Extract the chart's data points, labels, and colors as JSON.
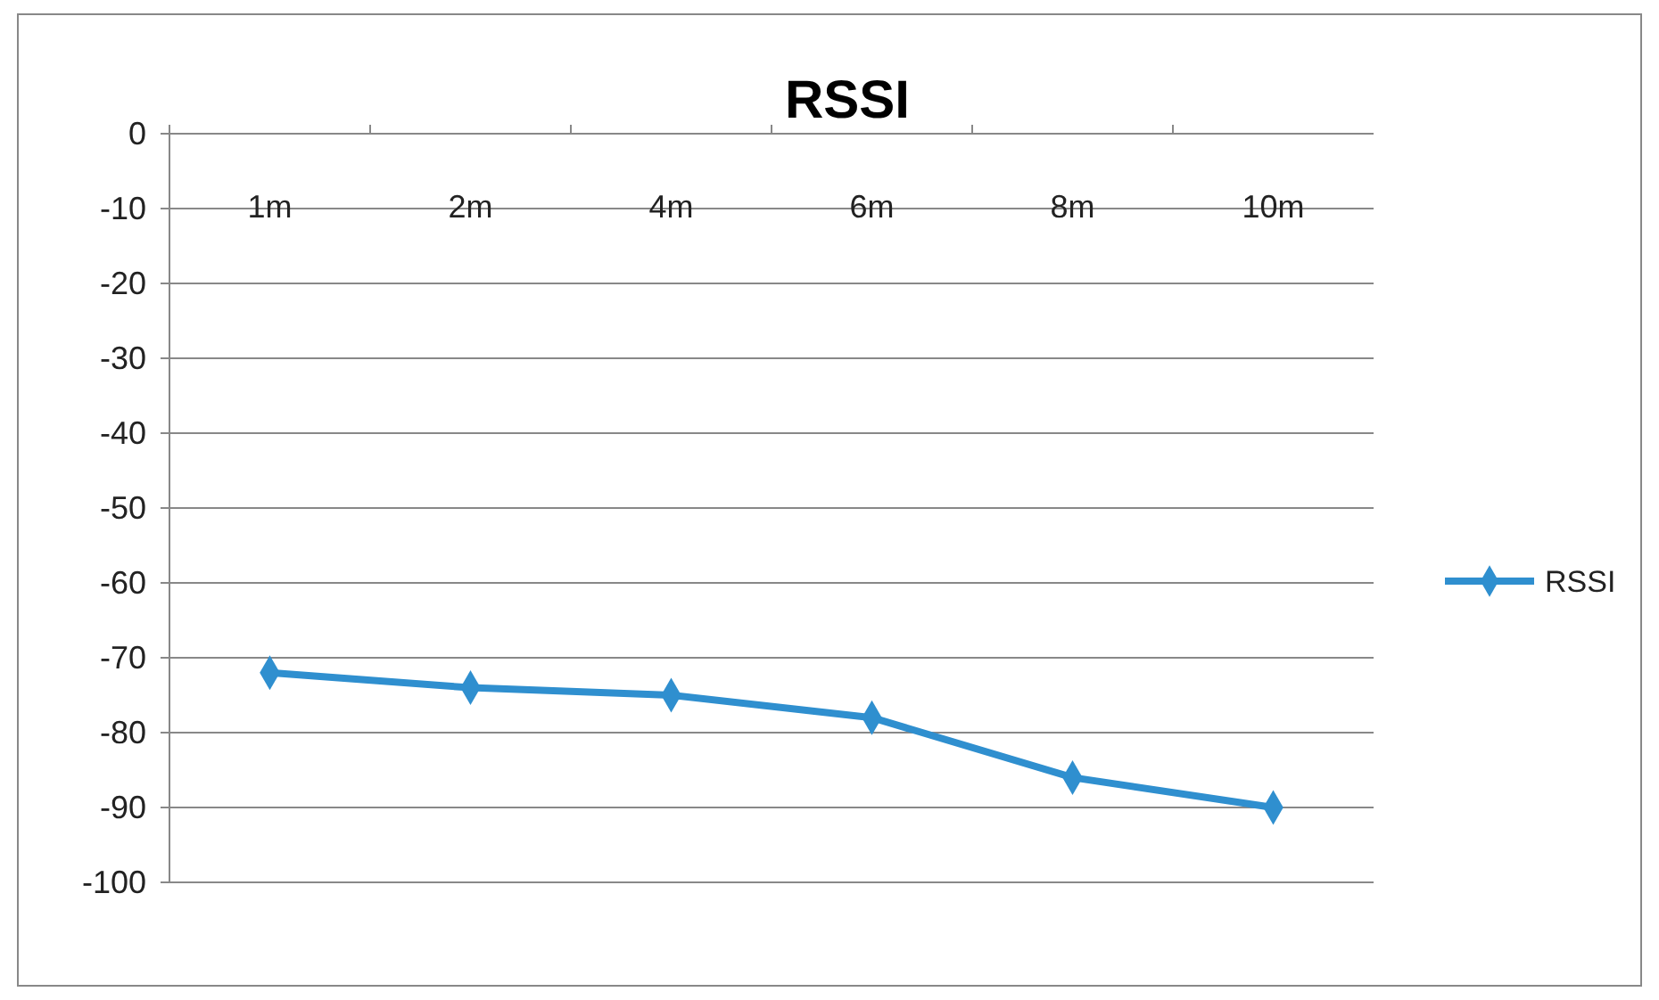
{
  "chart_data": {
    "type": "line",
    "title": "RSSI",
    "categories": [
      "1m",
      "2m",
      "4m",
      "6m",
      "8m",
      "10m"
    ],
    "series": [
      {
        "name": "RSSI",
        "color": "#2f8fcf",
        "values": [
          -72,
          -74,
          -75,
          -78,
          -86,
          -90
        ]
      }
    ],
    "ylim": [
      -100,
      0
    ],
    "yticks": [
      -100,
      -90,
      -80,
      -70,
      -60,
      -50,
      -40,
      -30,
      -20,
      -10,
      0
    ],
    "grid": "y",
    "legend": "right",
    "marker": "diamond",
    "line_style": "solid"
  }
}
